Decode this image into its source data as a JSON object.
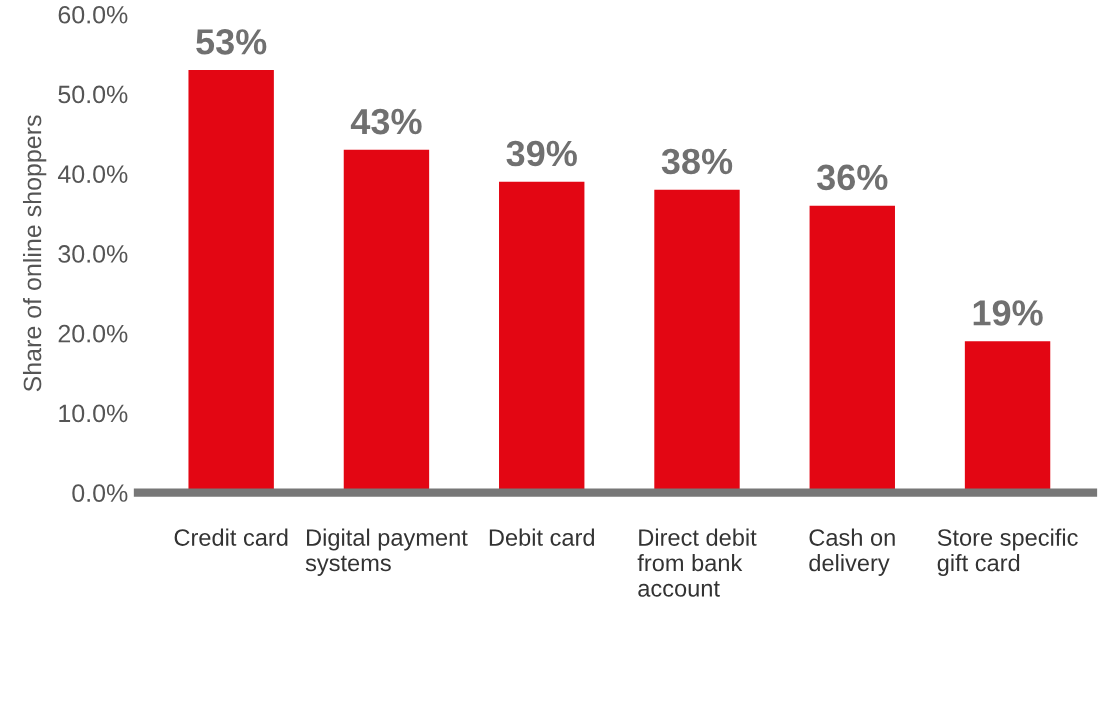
{
  "chart_data": {
    "type": "bar",
    "ylabel": "Share of online shoppers",
    "categories": [
      "Credit card",
      "Digital payment systems",
      "Debit card",
      "Direct debit from bank account",
      "Cash on delivery",
      "Store specific gift card"
    ],
    "values": [
      53,
      43,
      39,
      38,
      36,
      19
    ],
    "value_labels": [
      "53%",
      "43%",
      "39%",
      "38%",
      "36%",
      "19%"
    ],
    "color": "#e30613",
    "ylim": [
      0,
      60
    ],
    "yticks": [
      {
        "value": 0,
        "label": "0.0%"
      },
      {
        "value": 10,
        "label": "10.0%"
      },
      {
        "value": 20,
        "label": "20.0%"
      },
      {
        "value": 30,
        "label": "30.0%"
      },
      {
        "value": 40,
        "label": "40.0%"
      },
      {
        "value": 50,
        "label": "50.0%"
      },
      {
        "value": 60,
        "label": "60.0%"
      }
    ],
    "grid": false,
    "legend": false
  }
}
